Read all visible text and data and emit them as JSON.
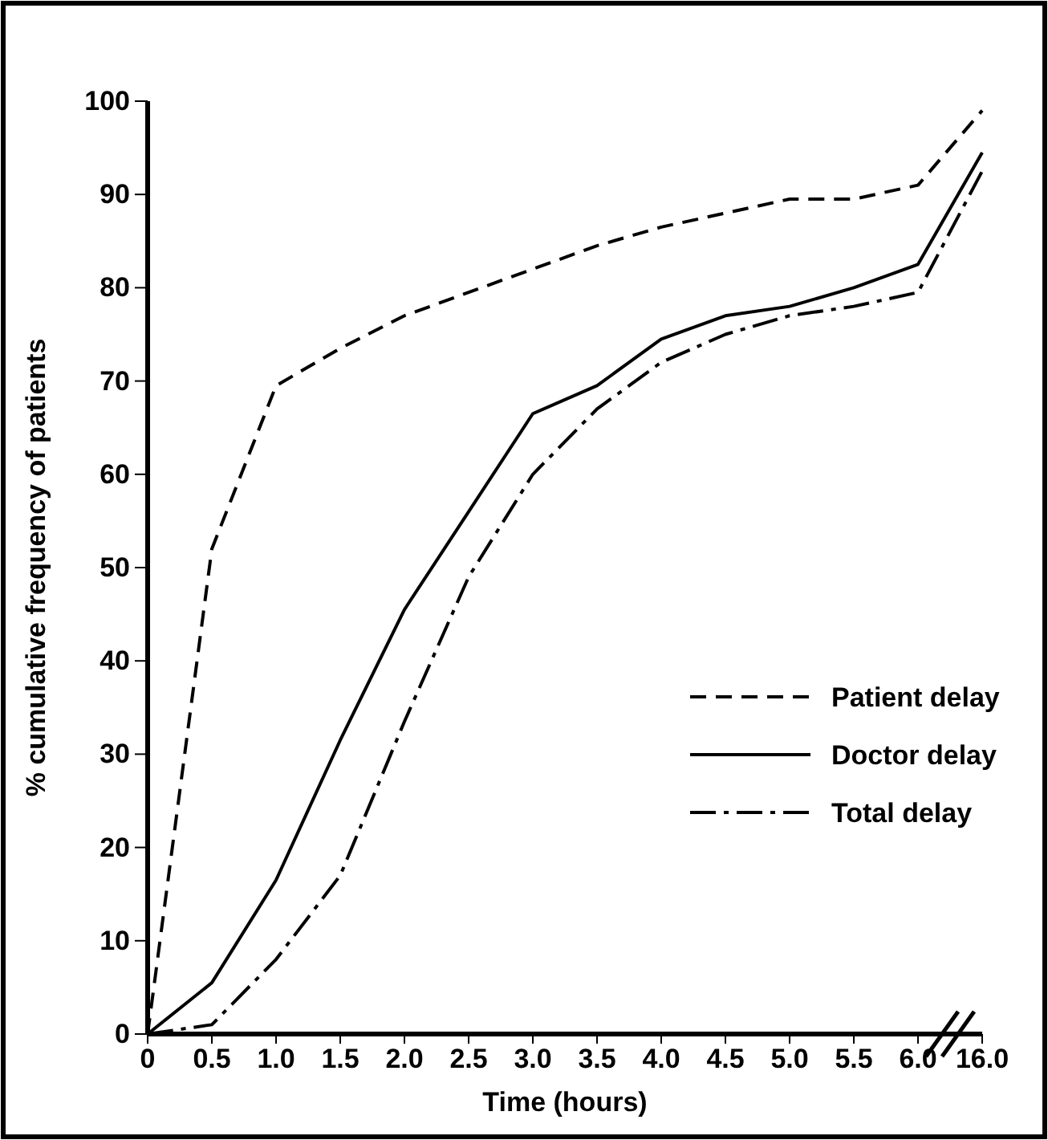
{
  "chart_data": {
    "type": "line",
    "xlabel": "Time (hours)",
    "ylabel": "% cumulative frequency of patients",
    "categories": [
      "0",
      "0.5",
      "1.0",
      "1.5",
      "2.0",
      "2.5",
      "3.0",
      "3.5",
      "4.0",
      "4.5",
      "5.0",
      "5.5",
      "6.0",
      "16.0"
    ],
    "series": [
      {
        "name": "Patient delay",
        "color": "#000000",
        "line_style": "dashed",
        "values": [
          0,
          52,
          69.5,
          73.5,
          77,
          79.5,
          82,
          84.5,
          86.5,
          88,
          89.5,
          89.5,
          91,
          99
        ]
      },
      {
        "name": "Doctor delay",
        "color": "#000000",
        "line_style": "solid",
        "values": [
          0,
          5.5,
          16.5,
          31.5,
          45.5,
          56,
          66.5,
          69.5,
          74.5,
          77,
          78,
          80,
          82.5,
          94.5
        ]
      },
      {
        "name": "Total delay",
        "color": "#000000",
        "line_style": "dashdot",
        "values": [
          0,
          1,
          8,
          17,
          33.5,
          49,
          60,
          67,
          72,
          75,
          77,
          78,
          79.5,
          92.5
        ]
      }
    ],
    "ylim": [
      0,
      100
    ],
    "yticks": [
      0,
      10,
      20,
      30,
      40,
      50,
      60,
      70,
      80,
      90,
      100
    ],
    "grid": false,
    "legend": "right",
    "marker": "none"
  }
}
